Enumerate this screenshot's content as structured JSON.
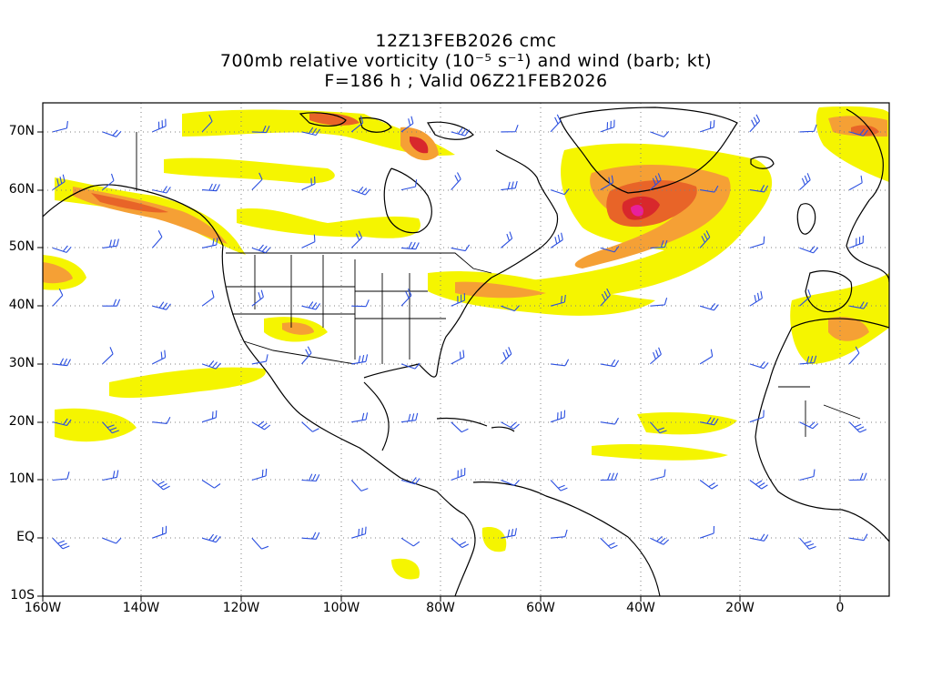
{
  "title": {
    "line1": "12Z13FEB2026 cmc",
    "line2": "700mb relative vorticity (10⁻⁵ s⁻¹) and wind (barb; kt)",
    "line3": "F=186 h ; Valid 06Z21FEB2026"
  },
  "axes": {
    "lat_labels": [
      "70N",
      "60N",
      "50N",
      "40N",
      "30N",
      "20N",
      "10N",
      "EQ",
      "10S"
    ],
    "lat_values": [
      70,
      60,
      50,
      40,
      30,
      20,
      10,
      0,
      -10
    ],
    "lon_labels": [
      "160W",
      "140W",
      "120W",
      "100W",
      "80W",
      "60W",
      "40W",
      "20W",
      "0"
    ],
    "lon_values": [
      -160,
      -140,
      -120,
      -100,
      -80,
      -60,
      -40,
      -20,
      0
    ],
    "lon_range": [
      -160,
      10
    ],
    "lat_range": [
      -10,
      75
    ],
    "grid": "dotted"
  },
  "colors": {
    "contour_yellow": "#f5f500",
    "contour_lightyellow": "#ffff8c",
    "contour_orange": "#f5a035",
    "contour_darkorange": "#e86428",
    "contour_red": "#d8282c",
    "contour_magenta": "#e8209c",
    "barbs": "#2a4fe0",
    "coastline": "#000000"
  }
}
